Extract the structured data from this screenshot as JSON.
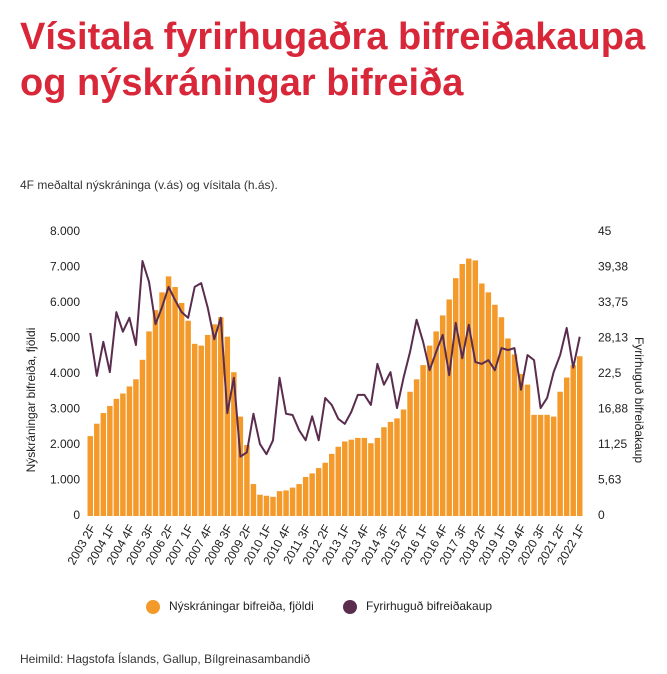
{
  "chart_data": {
    "type": "combo",
    "title": "Vísitala fyrirhugaðra bifreiðakaupa og nýskráningar bifreiða",
    "subtitle": "4F meðaltal nýskráninga (v.ás) og vísitala (h.ás).",
    "source": "Heimild: Hagstofa Íslands, Gallup, Bílgreinasambandið",
    "y_label": "Nýskráningar bifreiða, fjöldi",
    "y2_label": "Fyrirhuguð bifreiðakaup",
    "categories": [
      "2003 2F",
      null,
      null,
      "2004 1F",
      null,
      null,
      "2004 4F",
      null,
      null,
      "2005 3F",
      null,
      null,
      "2006 2F",
      null,
      null,
      "2007 1F",
      null,
      null,
      "2007 4F",
      null,
      null,
      "2008 3F",
      null,
      null,
      "2009 2F",
      null,
      null,
      "2010 1F",
      null,
      null,
      "2010 4F",
      null,
      null,
      "2011 3F",
      null,
      null,
      "2012 2F",
      null,
      null,
      "2013 1F",
      null,
      null,
      "2013 4F",
      null,
      null,
      "2014 3F",
      null,
      null,
      "2015 2F",
      null,
      null,
      "2016 1F",
      null,
      null,
      "2016 4F",
      null,
      null,
      "2017 3F",
      null,
      null,
      "2018 2F",
      null,
      null,
      "2019 1F",
      null,
      null,
      "2019 4F",
      null,
      null,
      "2020 3F",
      null,
      null,
      "2021 2F",
      null,
      null,
      "2022 1F"
    ],
    "series": [
      {
        "name": "Nýskráningar bifreiða, fjöldi",
        "type": "bar",
        "color": "#f39a2b",
        "values": [
          2250,
          2600,
          2900,
          3100,
          3300,
          3450,
          3650,
          3850,
          4400,
          5200,
          5800,
          6300,
          6750,
          6450,
          6000,
          5500,
          4850,
          4800,
          5100,
          5400,
          5600,
          5050,
          4050,
          2800,
          2000,
          900,
          600,
          570,
          540,
          700,
          720,
          800,
          900,
          1100,
          1200,
          1350,
          1500,
          1750,
          1950,
          2100,
          2150,
          2200,
          2200,
          2050,
          2200,
          2500,
          2650,
          2750,
          3000,
          3500,
          3850,
          4250,
          4800,
          5200,
          5650,
          6100,
          6700,
          7100,
          7250,
          7200,
          6550,
          6300,
          5950,
          5600,
          5000,
          4550,
          4000,
          3700,
          2850,
          2850,
          2850,
          2800,
          3500,
          3900,
          4250,
          4500
        ]
      },
      {
        "name": "Fyrirhuguð bifreiðakaup",
        "type": "line",
        "axis": "y2",
        "color": "#5a2d4f",
        "values": [
          29,
          22.2,
          27.6,
          22.8,
          32.3,
          29.2,
          31.4,
          27.1,
          40.4,
          37.1,
          30.4,
          33.1,
          36.3,
          34.2,
          32.3,
          31.4,
          36.3,
          36.9,
          33,
          28,
          31.4,
          16.3,
          21.9,
          9.4,
          10.1,
          16.2,
          11.4,
          9.8,
          12,
          21.9,
          16.2,
          16,
          13.6,
          12,
          15.8,
          12,
          18.7,
          17.6,
          15.4,
          14.6,
          16.5,
          19.2,
          19.2,
          17.6,
          24.1,
          20.8,
          22.8,
          17.1,
          21.9,
          26,
          31.1,
          27.6,
          23.1,
          26,
          28.7,
          22.3,
          30.6,
          25,
          30.3,
          24.4,
          24.1,
          24.7,
          23.1,
          26.6,
          26.3,
          26.6,
          20,
          25.5,
          24.7,
          17.1,
          18.7,
          22.8,
          25.5,
          29.8,
          23.5,
          28.4
        ]
      }
    ],
    "ylim": [
      0,
      8000
    ],
    "yticks": [
      0,
      {
        "value": 1000,
        "label": "1.000"
      },
      {
        "value": 2000,
        "label": "2.000"
      },
      {
        "value": 3000,
        "label": "3.000"
      },
      {
        "value": 4000,
        "label": "4.000"
      },
      {
        "value": 5000,
        "label": "5.000"
      },
      {
        "value": 6000,
        "label": "6.000"
      },
      {
        "value": 7000,
        "label": "7.000"
      },
      {
        "value": 8000,
        "label": "8.000"
      }
    ],
    "y2lim": [
      0,
      45
    ],
    "y2ticks": [
      0,
      {
        "value": 5.63,
        "label": "5,63"
      },
      {
        "value": 11.25,
        "label": "11,25"
      },
      {
        "value": 16.88,
        "label": "16,88"
      },
      {
        "value": 22.5,
        "label": "22,5"
      },
      {
        "value": 28.13,
        "label": "28,13"
      },
      {
        "value": 33.75,
        "label": "33,75"
      },
      {
        "value": 39.38,
        "label": "39,38"
      },
      45
    ],
    "legend": "bottom"
  }
}
